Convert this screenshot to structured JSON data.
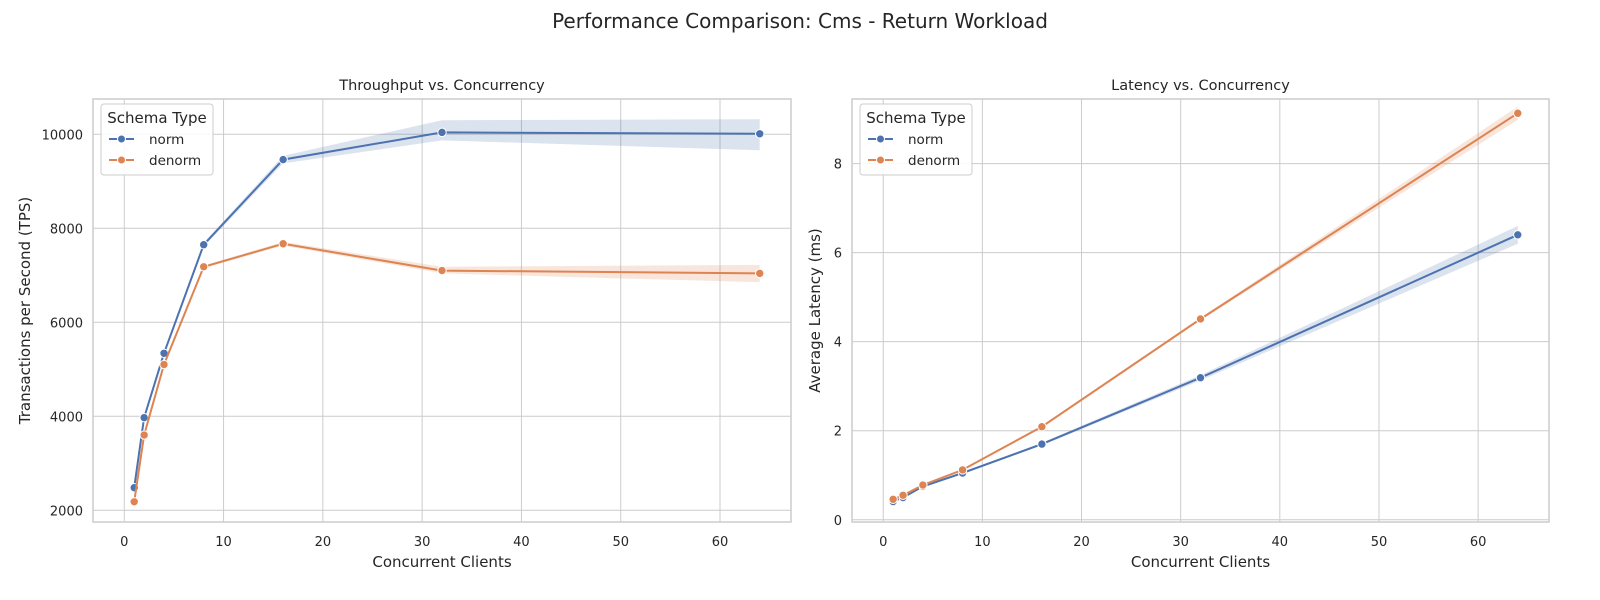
{
  "figure": {
    "title": "Performance Comparison: Cms - Return Workload",
    "colors": {
      "norm": "#4c72b0",
      "denorm": "#dd8452",
      "grid": "#cccccc",
      "spine": "#cccccc"
    }
  },
  "chart_data": [
    {
      "type": "line",
      "title": "Throughput vs. Concurrency",
      "xlabel": "Concurrent Clients",
      "ylabel": "Transactions per Second (TPS)",
      "xlim": [
        -3.15,
        67.15
      ],
      "ylim": [
        1750,
        10750
      ],
      "xticks": [
        0,
        10,
        20,
        30,
        40,
        50,
        60
      ],
      "yticks": [
        2000,
        4000,
        6000,
        8000,
        10000
      ],
      "grid": true,
      "legend": {
        "title": "Schema Type",
        "placement": "top-left"
      },
      "series": [
        {
          "name": "norm",
          "x": [
            1,
            2,
            4,
            8,
            16,
            32,
            64
          ],
          "y": [
            2480,
            3970,
            5340,
            7650,
            9460,
            10040,
            10010
          ],
          "ci_low": [
            2440,
            3940,
            5300,
            7610,
            9380,
            9870,
            9660
          ],
          "ci_high": [
            2520,
            4000,
            5380,
            7690,
            9540,
            10300,
            10320
          ]
        },
        {
          "name": "denorm",
          "x": [
            1,
            2,
            4,
            8,
            16,
            32,
            64
          ],
          "y": [
            2180,
            3600,
            5100,
            7180,
            7670,
            7100,
            7040
          ],
          "ci_low": [
            2150,
            3570,
            5070,
            7150,
            7630,
            7040,
            6850
          ],
          "ci_high": [
            2210,
            3630,
            5130,
            7210,
            7710,
            7180,
            7220
          ]
        }
      ]
    },
    {
      "type": "line",
      "title": "Latency vs. Concurrency",
      "xlabel": "Concurrent Clients",
      "ylabel": "Average Latency (ms)",
      "xlim": [
        -3.15,
        67.15
      ],
      "ylim": [
        -0.05,
        9.45
      ],
      "xticks": [
        0,
        10,
        20,
        30,
        40,
        50,
        60
      ],
      "yticks": [
        0,
        2,
        4,
        6,
        8
      ],
      "grid": true,
      "legend": {
        "title": "Schema Type",
        "placement": "top-left"
      },
      "series": [
        {
          "name": "norm",
          "x": [
            1,
            2,
            4,
            8,
            16,
            32,
            64
          ],
          "y": [
            0.41,
            0.5,
            0.75,
            1.05,
            1.7,
            3.19,
            6.4
          ],
          "ci_low": [
            0.39,
            0.48,
            0.73,
            1.03,
            1.67,
            3.13,
            6.2
          ],
          "ci_high": [
            0.43,
            0.52,
            0.77,
            1.07,
            1.73,
            3.25,
            6.6
          ]
        },
        {
          "name": "denorm",
          "x": [
            1,
            2,
            4,
            8,
            16,
            32,
            64
          ],
          "y": [
            0.46,
            0.55,
            0.78,
            1.12,
            2.09,
            4.51,
            9.13
          ],
          "ci_low": [
            0.44,
            0.53,
            0.76,
            1.1,
            2.06,
            4.48,
            8.98
          ],
          "ci_high": [
            0.48,
            0.57,
            0.8,
            1.14,
            2.12,
            4.54,
            9.28
          ]
        }
      ]
    }
  ]
}
